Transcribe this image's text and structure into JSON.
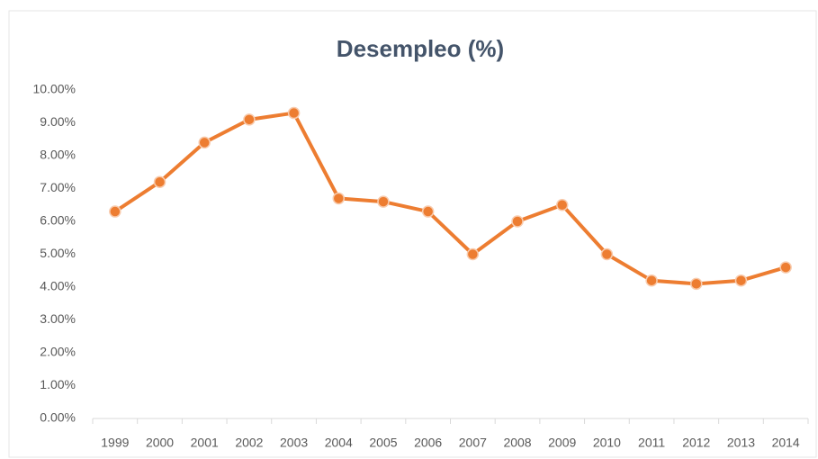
{
  "chart_data": {
    "type": "line",
    "title": "Desempleo (%)",
    "categories": [
      "1999",
      "2000",
      "2001",
      "2002",
      "2003",
      "2004",
      "2005",
      "2006",
      "2007",
      "2008",
      "2009",
      "2010",
      "2011",
      "2012",
      "2013",
      "2014"
    ],
    "values": [
      6.3,
      7.2,
      8.4,
      9.1,
      9.3,
      6.7,
      6.6,
      6.3,
      5.0,
      6.0,
      6.5,
      5.0,
      4.2,
      4.1,
      4.2,
      4.6
    ],
    "color": "#ed7d31",
    "ylim": [
      0,
      10
    ],
    "yticks": [
      {
        "value": 0,
        "label": "0.00%"
      },
      {
        "value": 1,
        "label": "1.00%"
      },
      {
        "value": 2,
        "label": "2.00%"
      },
      {
        "value": 3,
        "label": "3.00%"
      },
      {
        "value": 4,
        "label": "4.00%"
      },
      {
        "value": 5,
        "label": "5.00%"
      },
      {
        "value": 6,
        "label": "6.00%"
      },
      {
        "value": 7,
        "label": "7.00%"
      },
      {
        "value": 8,
        "label": "8.00%"
      },
      {
        "value": 9,
        "label": "9.00%"
      },
      {
        "value": 10,
        "label": "10.00%"
      }
    ],
    "grid": false
  }
}
